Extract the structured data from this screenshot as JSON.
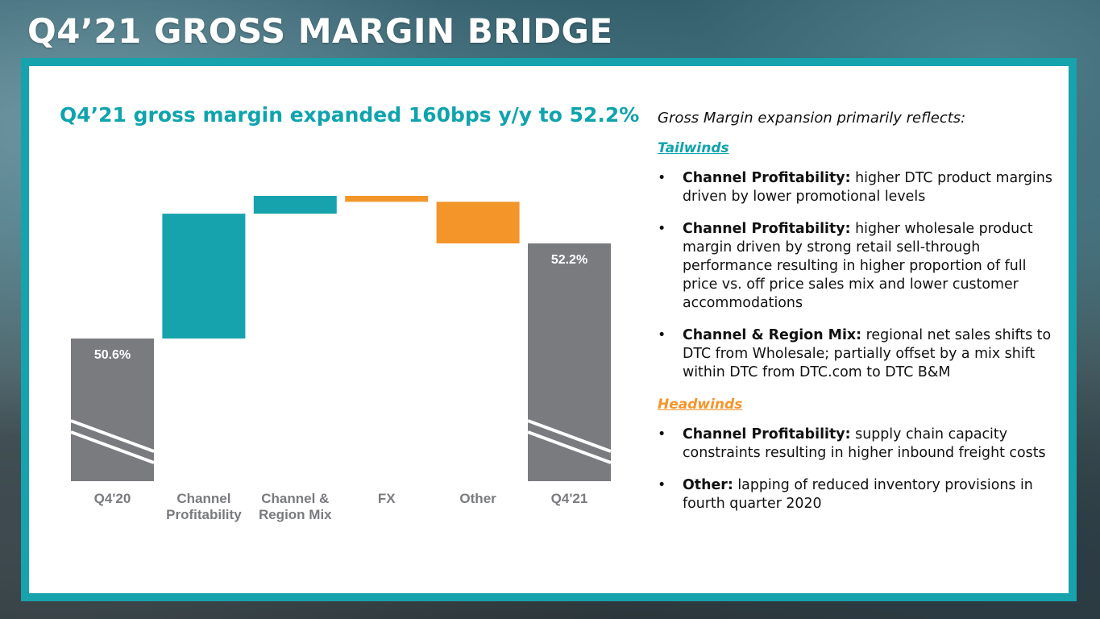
{
  "page": {
    "title": "Q4’21 GROSS MARGIN BRIDGE",
    "headline": "Q4’21 gross margin expanded 160bps y/y to 52.2%"
  },
  "colors": {
    "teal": "#17a3ad",
    "orange": "#f4952a",
    "gray": "#7a7b7f",
    "headline": "#0fa3ad"
  },
  "chart_data": {
    "type": "bar",
    "subtype": "waterfall",
    "categories": [
      "Q4'20",
      "Channel\nProfitability",
      "Channel &\nRegion Mix",
      "FX",
      "Other",
      "Q4'21"
    ],
    "bars": [
      {
        "category": "Q4'20",
        "kind": "total",
        "value": 50.6,
        "label": "50.6%",
        "color": "#7a7b7f"
      },
      {
        "category": "Channel Profitability",
        "kind": "increase",
        "start": 50.6,
        "end": 52.7,
        "color": "#17a3ad"
      },
      {
        "category": "Channel & Region Mix",
        "kind": "increase",
        "start": 52.7,
        "end": 53.0,
        "color": "#17a3ad"
      },
      {
        "category": "FX",
        "kind": "decrease",
        "start": 53.0,
        "end": 52.9,
        "color": "#f4952a"
      },
      {
        "category": "Other",
        "kind": "decrease",
        "start": 52.9,
        "end": 52.2,
        "color": "#f4952a"
      },
      {
        "category": "Q4'21",
        "kind": "total",
        "value": 52.2,
        "label": "52.2%",
        "color": "#7a7b7f"
      }
    ],
    "axis_break": true,
    "ylim": [
      48.2,
      53.0
    ],
    "title": "",
    "xlabel": "",
    "ylabel": "",
    "grid": false,
    "legend": "none"
  },
  "commentary": {
    "intro": "Gross Margin expansion primarily reflects:",
    "tailwinds_label": "Tailwinds",
    "tailwinds": [
      {
        "label": "Channel Profitability:",
        "text": " higher DTC product margins driven by lower promotional levels"
      },
      {
        "label": "Channel Profitability:",
        "text": " higher wholesale product margin driven by strong retail sell-through performance resulting in higher proportion of full price vs. off price sales mix and lower customer accommodations"
      },
      {
        "label": "Channel & Region Mix:",
        "text": " regional net sales shifts to DTC from Wholesale; partially offset by a mix shift within DTC from DTC.com to DTC B&M"
      }
    ],
    "headwinds_label": "Headwinds",
    "headwinds": [
      {
        "label": "Channel Profitability:",
        "text": " supply chain capacity constraints resulting in higher inbound freight costs"
      },
      {
        "label": "Other:",
        "text": " lapping of reduced inventory provisions in fourth quarter 2020"
      }
    ],
    "bullet": "•"
  }
}
